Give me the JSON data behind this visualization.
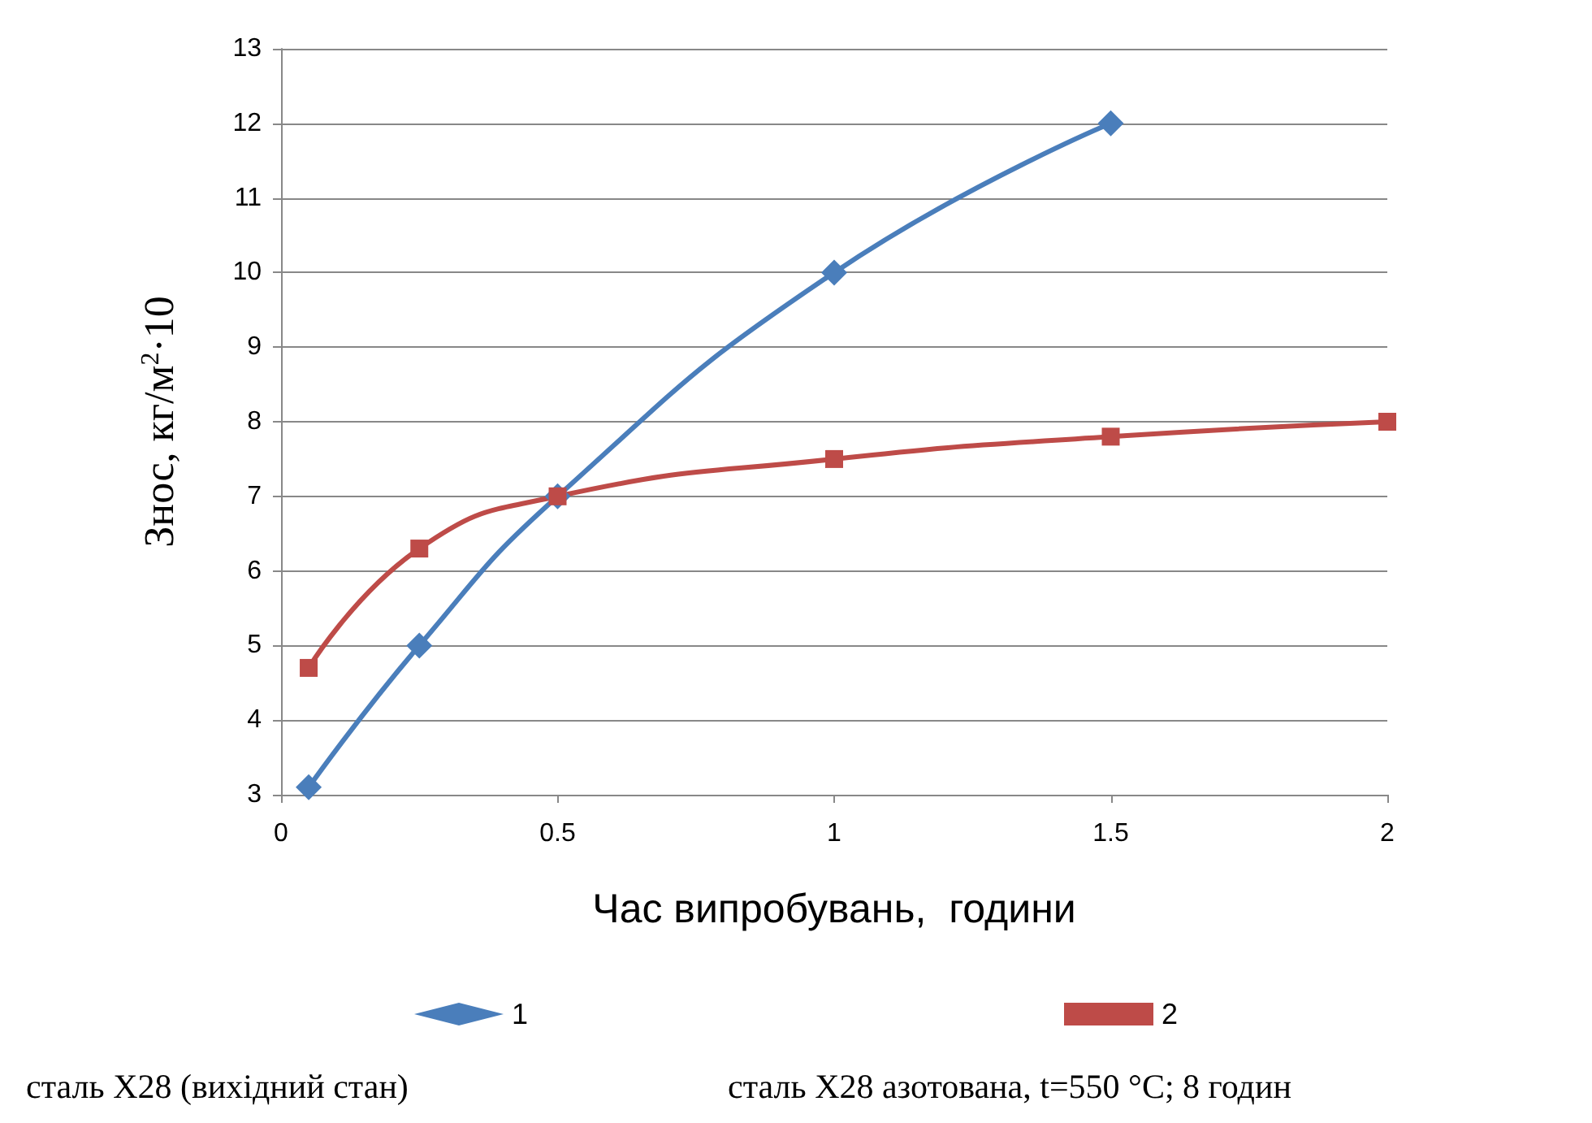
{
  "chart_data": {
    "type": "line",
    "xlabel": "Час випробувань,  години",
    "ylabel": "Знос, кг/м$^{2}$·10",
    "xlim": [
      0,
      2
    ],
    "xticks": [
      0,
      0.5,
      1,
      1.5,
      2
    ],
    "ylim": [
      3,
      13
    ],
    "yticks": [
      3,
      4,
      5,
      6,
      7,
      8,
      9,
      10,
      11,
      12,
      13
    ],
    "grid": "y",
    "legend": "bottom",
    "series": [
      {
        "name": "1",
        "color": "#4a7ebb",
        "marker": "diamond",
        "x": [
          0.05,
          0.25,
          0.5,
          1,
          1.5
        ],
        "values": [
          3.1,
          5,
          7,
          10,
          12
        ]
      },
      {
        "name": "2",
        "color": "#be4b48",
        "marker": "square",
        "x": [
          0.05,
          0.25,
          0.5,
          1,
          1.5,
          2
        ],
        "values": [
          4.7,
          6.3,
          7,
          7.5,
          7.8,
          8
        ]
      }
    ],
    "annotations": [
      "сталь Х28 (вихідний стан)",
      "сталь Х28 азотована, t=550 °С; 8 годин"
    ]
  }
}
